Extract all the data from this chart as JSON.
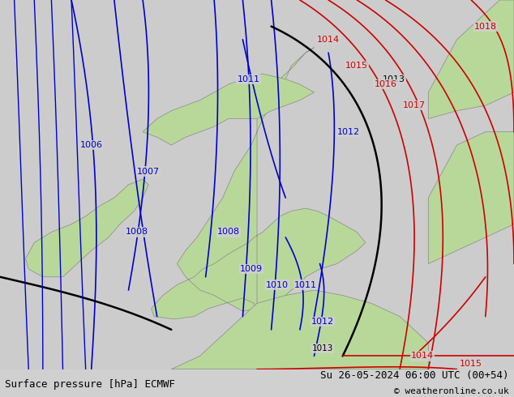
{
  "title_left": "Surface pressure [hPa] ECMWF",
  "title_right": "Su 26-05-2024 06:00 UTC (00+54)",
  "copyright": "© weatheronline.co.uk",
  "bg_color": "#d0d0d0",
  "land_color": "#b8d89a",
  "sea_color": "#c8c8c8",
  "blue_isobar_color": "#0000cc",
  "red_isobar_color": "#cc0000",
  "black_isobar_color": "#000000",
  "bottom_bar_color": "#e8e8e8",
  "font_color": "#000000",
  "figsize": [
    6.34,
    4.9
  ],
  "dpi": 100
}
